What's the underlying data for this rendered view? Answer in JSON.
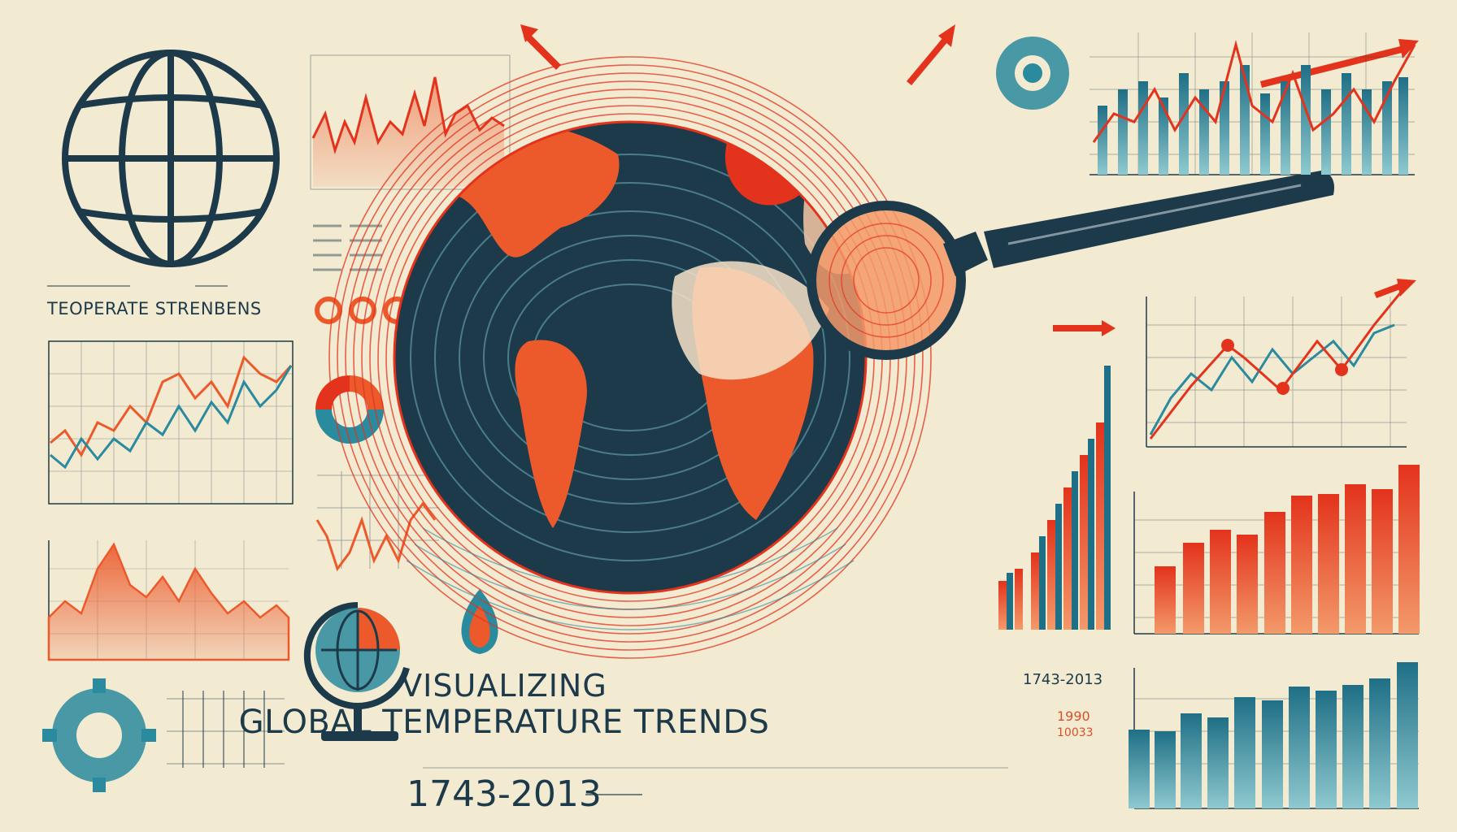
{
  "title": {
    "line1": "VISUALIZING",
    "line2": "GLOBAL TEMPERATURE TRENDS",
    "years": "1743-2013"
  },
  "small_year_label": "1743-2013",
  "red_labels": [
    "1990",
    "10033"
  ],
  "left_caption": "TEOPERATE STRENBENS",
  "colors": {
    "background": "#f3ead2",
    "navy": "#1d3a4a",
    "teal": "#2a8a9e",
    "orange": "#ec5a2c",
    "red": "#e3331c"
  },
  "icons": [
    "wireframe-globe-icon",
    "magnifying-glass-icon",
    "gear-icon",
    "flame-icon",
    "desk-globe-icon",
    "donut-chart-icon"
  ]
}
